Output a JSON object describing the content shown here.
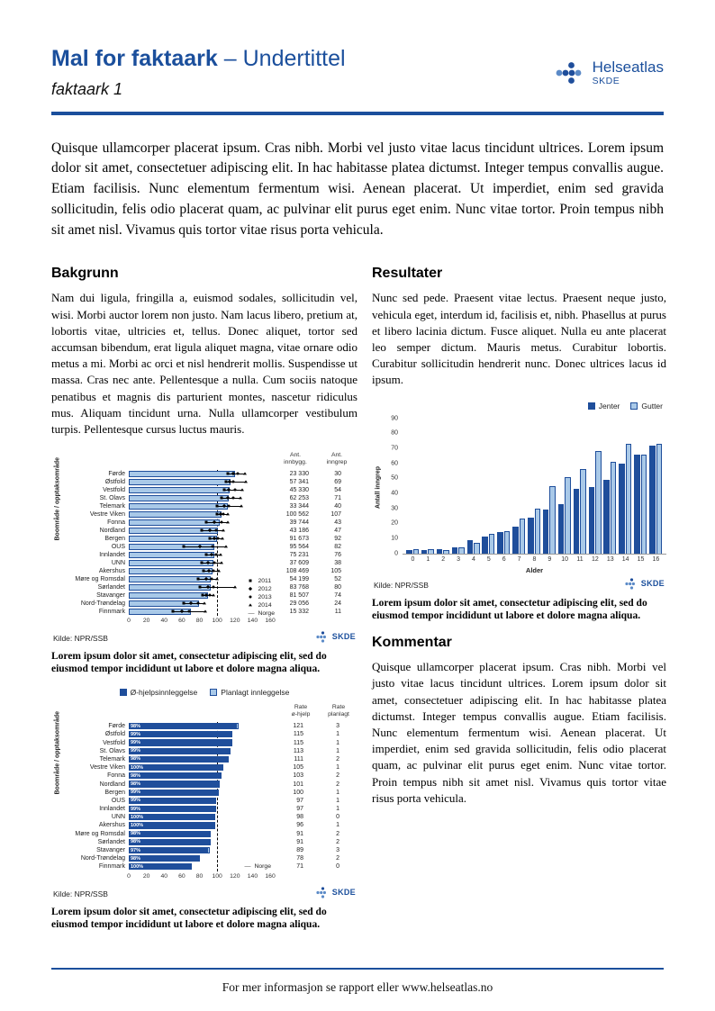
{
  "header": {
    "title": "Mal for faktaark",
    "title_separator": "–",
    "subtitle": "Undertittel",
    "doc_label": "faktaark 1",
    "logo_name": "Helseatlas",
    "logo_org": "SKDE"
  },
  "intro": "Quisque ullamcorper placerat ipsum. Cras nibh. Morbi vel justo vitae lacus tincidunt ultrices. Lorem ipsum dolor sit amet, consectetuer adipiscing elit. In hac habitasse platea dictumst. Integer tempus convallis augue. Etiam facilisis. Nunc elementum fermentum wisi. Aenean placerat. Ut imperdiet, enim sed gravida sollicitudin, felis odio placerat quam, ac pulvinar elit purus eget enim. Nunc vitae tortor. Proin tempus nibh sit amet nisl. Vivamus quis tortor vitae risus porta vehicula.",
  "sections": {
    "bakgrunn": {
      "heading": "Bakgrunn",
      "body": "Nam dui ligula, fringilla a, euismod sodales, sollicitudin vel, wisi. Morbi auctor lorem non justo. Nam lacus libero, pretium at, lobortis vitae, ultricies et, tellus. Donec aliquet, tortor sed accumsan bibendum, erat ligula aliquet magna, vitae ornare odio metus a mi. Morbi ac orci et nisl hendrerit mollis. Suspendisse ut massa. Cras nec ante. Pellentesque a nulla. Cum sociis natoque penatibus et magnis dis parturient montes, nascetur ridiculus mus. Aliquam tincidunt urna. Nulla ullamcorper vestibulum turpis. Pellentesque cursus luctus mauris."
    },
    "resultater": {
      "heading": "Resultater",
      "body": "Nunc sed pede. Praesent vitae lectus. Praesent neque justo, vehicula eget, interdum id, facilisis et, nibh. Phasellus at purus et libero lacinia dictum. Fusce aliquet. Nulla eu ante placerat leo semper dictum. Mauris metus. Curabitur lobortis. Curabitur sollicitudin hendrerit nunc. Donec ultrices lacus id ipsum."
    },
    "kommentar": {
      "heading": "Kommentar",
      "body": "Quisque ullamcorper placerat ipsum. Cras nibh. Morbi vel justo vitae lacus tincidunt ultrices. Lorem ipsum dolor sit amet, consectetuer adipiscing elit. In hac habitasse platea dictumst. Integer tempus convallis augue. Etiam facilisis. Nunc elementum fermentum wisi. Aenean placerat. Ut imperdiet, enim sed gravida sollicitudin, felis odio placerat quam, ac pulvinar elit purus eget enim. Nunc vitae tortor. Proin tempus nibh sit amet nisl. Vivamus quis tortor vitae risus porta vehicula."
    }
  },
  "captions": {
    "chart1": "Lorem ipsum dolor sit amet, consectetur adipiscing elit, sed do eiusmod tempor incididunt ut labore et dolore magna aliqua.",
    "chart2": "Lorem ipsum dolor sit amet, consectetur adipiscing elit, sed do eiusmod tempor incididunt ut labore et dolore magna aliqua.",
    "chart3": "Lorem ipsum dolor sit amet, consectetur adipiscing elit, sed do eiusmod tempor incididunt ut labore et dolore magna aliqua."
  },
  "chart_data": [
    {
      "type": "bar",
      "orientation": "horizontal",
      "ylabel": "Boområde / opptaksområde",
      "col_headers": [
        "Ant.\ninnbygg.",
        "Ant.\ninngrep"
      ],
      "categories": [
        "Førde",
        "Østfold",
        "Vestfold",
        "St. Olavs",
        "Telemark",
        "Vestre Viken",
        "Fonna",
        "Nordland",
        "Bergen",
        "OUS",
        "Innlandet",
        "UNN",
        "Akershus",
        "Møre og Romsdal",
        "Sørlandet",
        "Stavanger",
        "Nord-Trøndelag",
        "Finnmark"
      ],
      "bar_values": [
        120,
        115,
        114,
        113,
        112,
        105,
        103,
        101,
        100,
        97,
        97,
        96,
        95,
        93,
        93,
        90,
        79,
        70
      ],
      "markers": {
        "years": [
          "2011",
          "2012",
          "2013",
          "2014"
        ],
        "values": [
          [
            112,
            118,
            123,
            131
          ],
          [
            110,
            114,
            118,
            132
          ],
          [
            108,
            113,
            120,
            128
          ],
          [
            105,
            112,
            118,
            126
          ],
          [
            100,
            108,
            113,
            127
          ],
          [
            100,
            104,
            107,
            112
          ],
          [
            88,
            97,
            105,
            112
          ],
          [
            82,
            92,
            99,
            107
          ],
          [
            92,
            97,
            101,
            106
          ],
          [
            62,
            80,
            95,
            110
          ],
          [
            88,
            94,
            99,
            104
          ],
          [
            82,
            90,
            97,
            105
          ],
          [
            85,
            91,
            96,
            102
          ],
          [
            78,
            88,
            94,
            100
          ],
          [
            80,
            90,
            96,
            120
          ],
          [
            84,
            88,
            92,
            96
          ],
          [
            62,
            70,
            78,
            86
          ],
          [
            50,
            60,
            68,
            87
          ]
        ]
      },
      "innbygg": [
        "23 330",
        "57 341",
        "45 330",
        "62 253",
        "33 344",
        "100 562",
        "39 744",
        "43 186",
        "91 673",
        "95 564",
        "75 231",
        "37 609",
        "108 469",
        "54 199",
        "83 768",
        "81 507",
        "29 056",
        "15 332"
      ],
      "inngrep": [
        "30",
        "69",
        "54",
        "71",
        "40",
        "107",
        "43",
        "47",
        "92",
        "82",
        "76",
        "38",
        "105",
        "52",
        "80",
        "74",
        "24",
        "11"
      ],
      "reference": {
        "label": "Norge",
        "value": 100
      },
      "xlim": [
        0,
        165
      ],
      "xticks": [
        0,
        20,
        40,
        60,
        80,
        100,
        120,
        140,
        160
      ],
      "source": "Kilde: NPR/SSB"
    },
    {
      "type": "bar",
      "orientation": "vertical",
      "categories": [
        "0",
        "1",
        "2",
        "3",
        "4",
        "5",
        "6",
        "7",
        "8",
        "9",
        "10",
        "11",
        "12",
        "13",
        "14",
        "15",
        "16"
      ],
      "series": [
        {
          "name": "Jenter",
          "color": "#1F4E9B",
          "values": [
            2,
            2,
            3,
            4,
            9,
            11,
            14,
            18,
            24,
            29,
            33,
            43,
            44,
            49,
            60,
            66,
            72
          ]
        },
        {
          "name": "Gutter",
          "color": "#A9C9E8",
          "values": [
            3,
            3,
            2,
            4,
            7,
            13,
            15,
            23,
            30,
            45,
            51,
            56,
            68,
            61,
            73,
            66,
            73
          ]
        }
      ],
      "xlabel": "Alder",
      "ylabel": "Antall inngrep",
      "ylim": [
        0,
        90
      ],
      "yticks": [
        0,
        10,
        20,
        30,
        40,
        50,
        60,
        70,
        80,
        90
      ],
      "legend_position": "top-right",
      "source": "Kilde: NPR/SSB"
    },
    {
      "type": "bar",
      "orientation": "horizontal-stacked",
      "ylabel": "Boområde / opptaksområde",
      "series_names": [
        "Ø-hjelpsinnleggelse",
        "Planlagt innleggelse"
      ],
      "series_colors": [
        "#1F4E9B",
        "#A9C9E8"
      ],
      "col_headers": [
        "Rate\nø-hjelp",
        "Rate\nplanlagt"
      ],
      "categories": [
        "Førde",
        "Østfold",
        "Vestfold",
        "St. Olavs",
        "Telemark",
        "Vestre Viken",
        "Fonna",
        "Nordland",
        "Bergen",
        "OUS",
        "Innlandet",
        "UNN",
        "Akershus",
        "Møre og Romsdal",
        "Sørlandet",
        "Stavanger",
        "Nord-Trøndelag",
        "Finnmark"
      ],
      "rate_ohjelp": [
        121,
        115,
        115,
        113,
        111,
        105,
        103,
        101,
        100,
        97,
        97,
        98,
        96,
        91,
        91,
        89,
        78,
        71
      ],
      "rate_planlagt": [
        3,
        1,
        1,
        1,
        2,
        1,
        2,
        2,
        1,
        1,
        1,
        0,
        1,
        2,
        2,
        3,
        2,
        0
      ],
      "pct_labels": [
        "98%",
        "99%",
        "99%",
        "99%",
        "98%",
        "100%",
        "98%",
        "98%",
        "99%",
        "99%",
        "99%",
        "100%",
        "100%",
        "98%",
        "98%",
        "97%",
        "98%",
        "100%"
      ],
      "reference": {
        "label": "Norge",
        "value": 100
      },
      "xlim": [
        0,
        165
      ],
      "xticks": [
        0,
        20,
        40,
        60,
        80,
        100,
        120,
        140,
        160
      ],
      "source": "Kilde: NPR/SSB"
    }
  ],
  "footer": {
    "text": "For mer informasjon se rapport eller www.helseatlas.no"
  }
}
